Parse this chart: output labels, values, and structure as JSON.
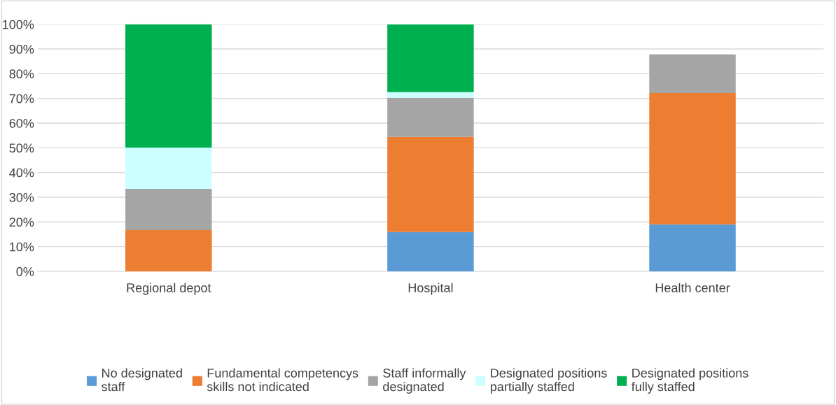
{
  "chart_data": {
    "type": "bar",
    "stacked": true,
    "categories": [
      "Regional depot",
      "Hospital",
      "Health center"
    ],
    "series": [
      {
        "name": "No designated\nstaff",
        "color": "#5b9bd5",
        "values": [
          0,
          15.9,
          19.0
        ]
      },
      {
        "name": "Fundamental competencys\nskills not indicated",
        "color": "#ed7d31",
        "values": [
          16.7,
          38.5,
          53.2
        ]
      },
      {
        "name": "Staff informally\ndesignated",
        "color": "#a5a5a5",
        "values": [
          16.7,
          15.9,
          15.6
        ]
      },
      {
        "name": "Designated positions\npartially staffed",
        "color": "#ccffff",
        "values": [
          16.7,
          2.2,
          0
        ]
      },
      {
        "name": "Designated positions\nfully staffed",
        "color": "#00b050",
        "values": [
          50,
          27.5,
          0
        ]
      }
    ],
    "ylim": [
      0,
      100
    ],
    "yticks": [
      {
        "value": 0,
        "label": "0%"
      },
      {
        "value": 10,
        "label": "10%"
      },
      {
        "value": 20,
        "label": "20%"
      },
      {
        "value": 30,
        "label": "30%"
      },
      {
        "value": 40,
        "label": "40%"
      },
      {
        "value": 50,
        "label": "50%"
      },
      {
        "value": 60,
        "label": "60%"
      },
      {
        "value": 70,
        "label": "70%"
      },
      {
        "value": 80,
        "label": "80%"
      },
      {
        "value": 90,
        "label": "90%"
      },
      {
        "value": 100,
        "label": "100%"
      }
    ],
    "grid": "y",
    "legend": "bottom"
  }
}
